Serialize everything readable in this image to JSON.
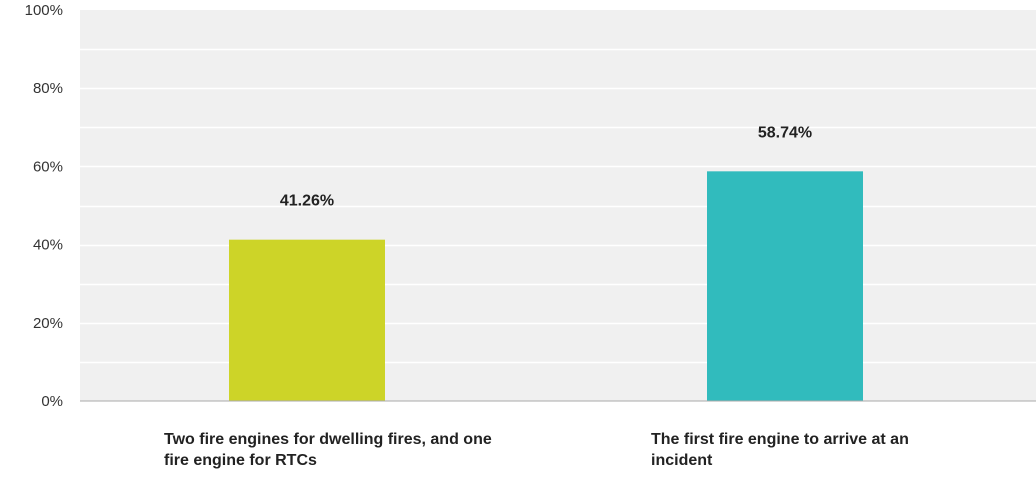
{
  "chart_data": {
    "type": "bar",
    "categories": [
      "Two fire engines for dwelling fires, and one fire engine for RTCs",
      "The first fire engine to arrive at an incident"
    ],
    "values": [
      41.26,
      58.74
    ],
    "data_labels": [
      "41.26%",
      "58.74%"
    ],
    "bar_colors": [
      "#CDD428",
      "#31BBBD"
    ],
    "ylim": [
      0,
      100
    ],
    "yticks": [
      0,
      20,
      40,
      60,
      80,
      100
    ],
    "ytick_labels": [
      "0%",
      "20%",
      "40%",
      "60%",
      "80%",
      "100%"
    ],
    "grid": true,
    "legend": "none",
    "title": "",
    "xlabel": "",
    "ylabel": ""
  }
}
